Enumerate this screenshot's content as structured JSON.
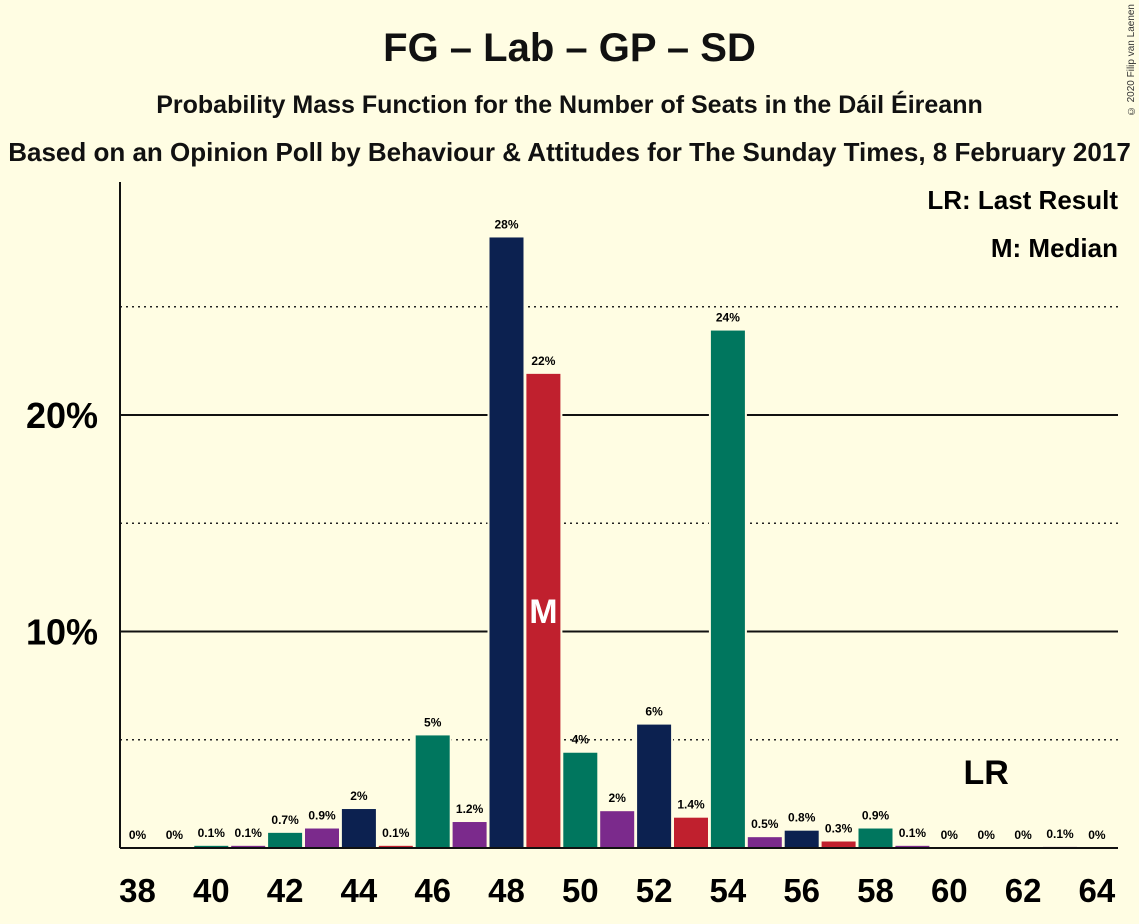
{
  "titles": {
    "main": "FG – Lab – GP – SD",
    "subtitle": "Probability Mass Function for the Number of Seats in the Dáil Éireann",
    "source": "Based on an Opinion Poll by Behaviour & Attitudes for The Sunday Times, 8 February 2017",
    "copyright": "© 2020 Filip van Laenen"
  },
  "legend": {
    "last_result": "LR: Last Result",
    "median": "M: Median"
  },
  "markers": {
    "median_label": "M",
    "median_seat": 49,
    "last_result_label": "LR",
    "last_result_seat": 61
  },
  "colors": {
    "navy": "#0C2150",
    "red": "#C0202E",
    "green": "#00765E",
    "purple": "#7B2A8C",
    "background": "#FFFDE3"
  },
  "chart_data": {
    "type": "bar",
    "ylim": [
      0,
      30
    ],
    "ytick_values": [
      10,
      20
    ],
    "ytick_labels": [
      "10%",
      "20%"
    ],
    "dotted_gridlines": [
      5,
      15,
      25
    ],
    "xtick_values": [
      38,
      40,
      42,
      44,
      46,
      48,
      50,
      52,
      54,
      56,
      58,
      60,
      62,
      64
    ],
    "xtick_labels": [
      "38",
      "40",
      "42",
      "44",
      "46",
      "48",
      "50",
      "52",
      "54",
      "56",
      "58",
      "60",
      "62",
      "64"
    ],
    "bars": [
      {
        "seats": 38,
        "value": 0,
        "label": "0%",
        "color": "navy"
      },
      {
        "seats": 39,
        "value": 0,
        "label": "0%",
        "color": "red"
      },
      {
        "seats": 40,
        "value": 0.1,
        "label": "0.1%",
        "color": "green"
      },
      {
        "seats": 41,
        "value": 0.1,
        "label": "0.1%",
        "color": "purple"
      },
      {
        "seats": 42,
        "value": 0.7,
        "label": "0.7%",
        "color": "green"
      },
      {
        "seats": 43,
        "value": 0.9,
        "label": "0.9%",
        "color": "purple"
      },
      {
        "seats": 44,
        "value": 1.8,
        "label": "2%",
        "color": "navy"
      },
      {
        "seats": 45,
        "value": 0.1,
        "label": "0.1%",
        "color": "red"
      },
      {
        "seats": 46,
        "value": 5.2,
        "label": "5%",
        "color": "green"
      },
      {
        "seats": 47,
        "value": 1.2,
        "label": "1.2%",
        "color": "purple"
      },
      {
        "seats": 48,
        "value": 28.2,
        "label": "28%",
        "color": "navy"
      },
      {
        "seats": 49,
        "value": 21.9,
        "label": "22%",
        "color": "red"
      },
      {
        "seats": 50,
        "value": 4.4,
        "label": "4%",
        "color": "green"
      },
      {
        "seats": 51,
        "value": 1.7,
        "label": "2%",
        "color": "purple"
      },
      {
        "seats": 52,
        "value": 5.7,
        "label": "6%",
        "color": "navy"
      },
      {
        "seats": 53,
        "value": 1.4,
        "label": "1.4%",
        "color": "red"
      },
      {
        "seats": 54,
        "value": 23.9,
        "label": "24%",
        "color": "green"
      },
      {
        "seats": 55,
        "value": 0.5,
        "label": "0.5%",
        "color": "purple"
      },
      {
        "seats": 56,
        "value": 0.8,
        "label": "0.8%",
        "color": "navy"
      },
      {
        "seats": 57,
        "value": 0.3,
        "label": "0.3%",
        "color": "red"
      },
      {
        "seats": 58,
        "value": 0.9,
        "label": "0.9%",
        "color": "green"
      },
      {
        "seats": 59,
        "value": 0.1,
        "label": "0.1%",
        "color": "purple"
      },
      {
        "seats": 60,
        "value": 0,
        "label": "0%",
        "color": "navy"
      },
      {
        "seats": 61,
        "value": 0,
        "label": "0%",
        "color": "red"
      },
      {
        "seats": 62,
        "value": 0,
        "label": "0%",
        "color": "green"
      },
      {
        "seats": 63,
        "value": 0.05,
        "label": "0.1%",
        "color": "purple"
      },
      {
        "seats": 64,
        "value": 0,
        "label": "0%",
        "color": "navy"
      }
    ]
  }
}
